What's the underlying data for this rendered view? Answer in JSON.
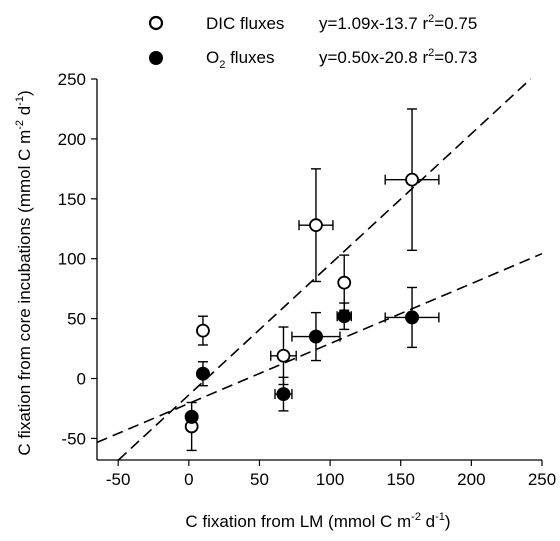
{
  "chart_data": {
    "type": "scatter",
    "xlabel": {
      "main": "C fixation from LM (mmol C m",
      "sup1": "-2",
      "mid": " d",
      "sup2": "-1",
      "end": ")"
    },
    "ylabel": {
      "main": "C fixation from core incubations (mmol C m",
      "sup1": "-2",
      "mid": " d",
      "sup2": "-1",
      "end": ")"
    },
    "xlim": [
      -65,
      250
    ],
    "ylim": [
      -68,
      250
    ],
    "xticks": [
      -50,
      0,
      50,
      100,
      150,
      200,
      250
    ],
    "yticks": [
      -50,
      0,
      50,
      100,
      150,
      200,
      250
    ],
    "legend_position": "top",
    "series": [
      {
        "name": "DIC fluxes",
        "marker": "open-circle",
        "equation": {
          "text1": "y=1.09x-13.7 r",
          "sup": "2",
          "text2": "=0.75"
        },
        "fit": {
          "slope": 1.09,
          "intercept": -13.7
        },
        "points": [
          {
            "x": 2,
            "y": -40,
            "xerr": 0,
            "yerr": 20
          },
          {
            "x": 10,
            "y": 40,
            "xerr": 0,
            "yerr": 12
          },
          {
            "x": 67,
            "y": 19,
            "xerr": 9,
            "yerr": 24
          },
          {
            "x": 90,
            "y": 128,
            "xerr": 12,
            "yerr": 47
          },
          {
            "x": 110,
            "y": 80,
            "xerr": 3,
            "yerr": 23
          },
          {
            "x": 158,
            "y": 166,
            "xerr": 19,
            "yerr": 59
          }
        ]
      },
      {
        "name": "O2 fluxes",
        "name_parts": {
          "base": "O",
          "sub": "2",
          "rest": " fluxes"
        },
        "marker": "filled-circle",
        "equation": {
          "text1": "y=0.50x-20.8 r",
          "sup": "2",
          "text2": "=0.73"
        },
        "fit": {
          "slope": 0.5,
          "intercept": -20.8
        },
        "points": [
          {
            "x": 2,
            "y": -32,
            "xerr": 0,
            "yerr": 0
          },
          {
            "x": 10,
            "y": 4,
            "xerr": 0,
            "yerr": 10
          },
          {
            "x": 67,
            "y": -13,
            "xerr": 6,
            "yerr": 14
          },
          {
            "x": 90,
            "y": 35,
            "xerr": 17,
            "yerr": 20
          },
          {
            "x": 110,
            "y": 52,
            "xerr": 5,
            "yerr": 11
          },
          {
            "x": 158,
            "y": 51,
            "xerr": 19,
            "yerr": 25
          }
        ]
      }
    ]
  }
}
